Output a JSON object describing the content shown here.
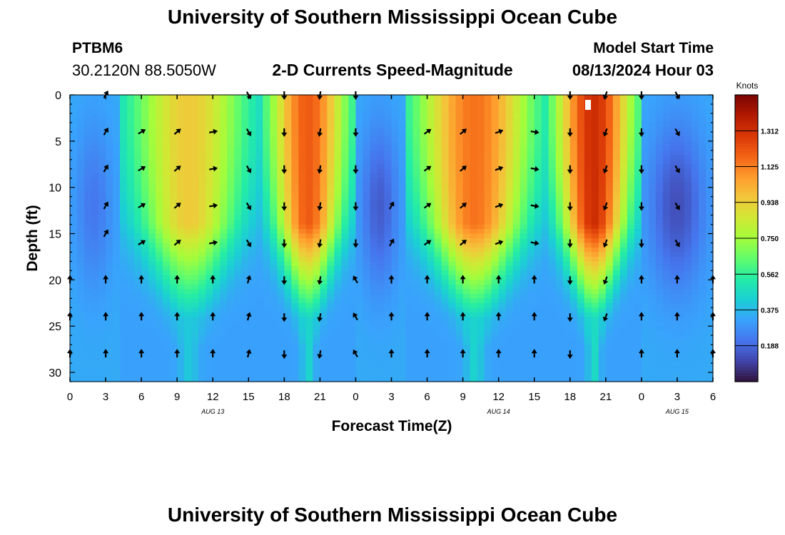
{
  "header": {
    "title": "University of Southern Mississippi Ocean Cube",
    "station": "PTBM6",
    "coords": "30.2120N  88.5050W",
    "subtitle": "2-D Currents Speed-Magnitude",
    "model_start_label": "Model Start Time",
    "model_start_value": "08/13/2024 Hour 03"
  },
  "footer": {
    "title": "University of Southern Mississippi Ocean Cube"
  },
  "chart_data": {
    "type": "heatmap",
    "title": "2-D Currents Speed-Magnitude",
    "xlabel": "Forecast Time(Z)",
    "ylabel": "Depth (ft)",
    "x_range_hours": [
      0,
      54
    ],
    "x_ticks": [
      "0",
      "3",
      "6",
      "9",
      "12",
      "15",
      "18",
      "21",
      "0",
      "3",
      "6",
      "9",
      "12",
      "15",
      "18",
      "21",
      "0",
      "3",
      "6"
    ],
    "date_labels": [
      {
        "hour": 12,
        "label": "AUG 13"
      },
      {
        "hour": 36,
        "label": "AUG 14"
      },
      {
        "hour": 51,
        "label": "AUG 15"
      }
    ],
    "ylim": [
      31,
      0
    ],
    "y_ticks": [
      0,
      5,
      10,
      15,
      20,
      25,
      30
    ],
    "colorbar": {
      "label": "Knots",
      "range": [
        0,
        1.5
      ],
      "ticks": [
        "1.312",
        "1.125",
        "0.938",
        "0.750",
        "0.562",
        "0.375",
        "0.188"
      ],
      "colors": [
        "#30123b",
        "#4145ab",
        "#4675ed",
        "#39a2fc",
        "#1bcfd4",
        "#24eca6",
        "#61fc6c",
        "#a4fc3b",
        "#d1e834",
        "#f3c63a",
        "#fe9b2d",
        "#f36315",
        "#d93806",
        "#b11901",
        "#7a0402"
      ]
    },
    "regimes": [
      {
        "start_hour": 0,
        "end_hour": 4,
        "surface_speed": 0.2,
        "type": "weak"
      },
      {
        "start_hour": 4,
        "end_hour": 16,
        "surface_speed": 0.95,
        "type": "flood",
        "direction": "north-east"
      },
      {
        "start_hour": 16,
        "end_hour": 24,
        "surface_speed": 1.2,
        "type": "ebb",
        "direction": "south"
      },
      {
        "start_hour": 24,
        "end_hour": 28,
        "surface_speed": 0.3,
        "type": "weak"
      },
      {
        "start_hour": 28,
        "end_hour": 40,
        "surface_speed": 1.15,
        "type": "flood",
        "direction": "north-east"
      },
      {
        "start_hour": 40,
        "end_hour": 48,
        "surface_speed": 1.32,
        "type": "ebb",
        "direction": "south"
      },
      {
        "start_hour": 48,
        "end_hour": 54,
        "surface_speed": 0.35,
        "type": "weak"
      }
    ],
    "vectors": [
      {
        "hour": 0,
        "depths": [
          20,
          24,
          28
        ],
        "direction_deg": 0
      },
      {
        "hour": 3,
        "depths": [
          0,
          4,
          8,
          12,
          15
        ],
        "direction_deg": 30
      },
      {
        "hour": 3,
        "depths": [
          20,
          24,
          28
        ],
        "direction_deg": 0
      },
      {
        "hour": 6,
        "depths": [
          4,
          8,
          12,
          16
        ],
        "direction_deg": 60
      },
      {
        "hour": 6,
        "depths": [
          20,
          24,
          28
        ],
        "direction_deg": 0
      },
      {
        "hour": 9,
        "depths": [
          4,
          8,
          12,
          16
        ],
        "direction_deg": 50
      },
      {
        "hour": 9,
        "depths": [
          20,
          24,
          28
        ],
        "direction_deg": 0
      },
      {
        "hour": 12,
        "depths": [
          4,
          8,
          12,
          16
        ],
        "direction_deg": 80
      },
      {
        "hour": 12,
        "depths": [
          20,
          24,
          28
        ],
        "direction_deg": 0
      },
      {
        "hour": 15,
        "depths": [
          0,
          4,
          8,
          12,
          16
        ],
        "direction_deg": 150
      },
      {
        "hour": 15,
        "depths": [
          20,
          24,
          28
        ],
        "direction_deg": 15
      },
      {
        "hour": 18,
        "depths": [
          0,
          4,
          8,
          12,
          16,
          20,
          24,
          28
        ],
        "direction_deg": 180
      },
      {
        "hour": 21,
        "depths": [
          0,
          4,
          8,
          12,
          16,
          20,
          24,
          28
        ],
        "direction_deg": 190
      },
      {
        "hour": 24,
        "depths": [
          0,
          4,
          8,
          12,
          16
        ],
        "direction_deg": 180
      },
      {
        "hour": 24,
        "depths": [
          20,
          24,
          28
        ],
        "direction_deg": 330
      },
      {
        "hour": 27,
        "depths": [
          12,
          16
        ],
        "direction_deg": 30
      },
      {
        "hour": 27,
        "depths": [
          20,
          24,
          28
        ],
        "direction_deg": 0
      },
      {
        "hour": 30,
        "depths": [
          4,
          8,
          12,
          16
        ],
        "direction_deg": 55
      },
      {
        "hour": 30,
        "depths": [
          20,
          24,
          28
        ],
        "direction_deg": 0
      },
      {
        "hour": 33,
        "depths": [
          4,
          8,
          12,
          16
        ],
        "direction_deg": 50
      },
      {
        "hour": 33,
        "depths": [
          20,
          24,
          28
        ],
        "direction_deg": 0
      },
      {
        "hour": 36,
        "depths": [
          4,
          8,
          12,
          16
        ],
        "direction_deg": 70
      },
      {
        "hour": 36,
        "depths": [
          20,
          24,
          28
        ],
        "direction_deg": 0
      },
      {
        "hour": 39,
        "depths": [
          4,
          8,
          12,
          16
        ],
        "direction_deg": 100
      },
      {
        "hour": 39,
        "depths": [
          20,
          24,
          28
        ],
        "direction_deg": 0
      },
      {
        "hour": 42,
        "depths": [
          0,
          4,
          8,
          12,
          16,
          20,
          24,
          28
        ],
        "direction_deg": 180
      },
      {
        "hour": 45,
        "depths": [
          0,
          4,
          8,
          12,
          16,
          20,
          24
        ],
        "direction_deg": 200
      },
      {
        "hour": 48,
        "depths": [
          0,
          4,
          8,
          12,
          16
        ],
        "direction_deg": 180
      },
      {
        "hour": 48,
        "depths": [
          20,
          24,
          28
        ],
        "direction_deg": 0
      },
      {
        "hour": 51,
        "depths": [
          0,
          4,
          8,
          12,
          16
        ],
        "direction_deg": 150
      },
      {
        "hour": 51,
        "depths": [
          20,
          24,
          28
        ],
        "direction_deg": 0
      },
      {
        "hour": 54,
        "depths": [
          20,
          24,
          28
        ],
        "direction_deg": 0
      }
    ]
  }
}
